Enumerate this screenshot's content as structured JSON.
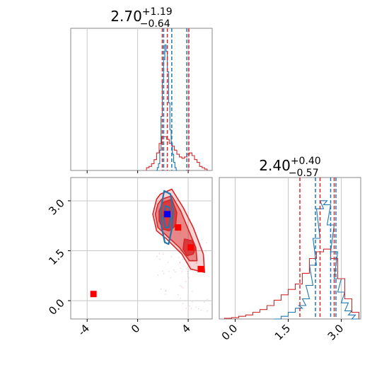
{
  "chart_data": [
    {
      "type": "histogram",
      "panel": "marginal-x",
      "title": {
        "value": "2.70",
        "plus": "+1.19",
        "minus": "−0.64"
      },
      "xlim": [
        -5.3,
        5.9
      ],
      "xticks": [
        "-4",
        "0",
        "4"
      ],
      "grid": true,
      "series": [
        {
          "color": "#1f77b4",
          "x": [
            1.5,
            1.6,
            1.7,
            1.8,
            1.9,
            2.0,
            2.1,
            2.2,
            2.3,
            2.4,
            2.5,
            2.6,
            2.7,
            2.8,
            2.9,
            3.0,
            3.1
          ],
          "values": [
            0.0,
            0.02,
            0.05,
            0.15,
            0.4,
            0.65,
            0.82,
            0.93,
            0.88,
            0.73,
            0.5,
            0.3,
            0.2,
            0.12,
            0.06,
            0.02,
            0.0
          ],
          "quantiles": [
            2.06,
            2.7,
            3.89
          ]
        },
        {
          "color": "#d62728",
          "x": [
            0.8,
            1.0,
            1.2,
            1.4,
            1.6,
            1.8,
            2.0,
            2.2,
            2.4,
            2.6,
            2.8,
            3.0,
            3.2,
            3.4,
            3.6,
            3.8,
            4.0,
            4.2,
            4.4,
            4.6,
            4.8,
            5.0,
            5.2,
            5.4
          ],
          "values": [
            0.02,
            0.03,
            0.05,
            0.08,
            0.13,
            0.2,
            0.25,
            0.25,
            0.23,
            0.2,
            0.18,
            0.15,
            0.12,
            0.1,
            0.09,
            0.1,
            0.12,
            0.13,
            0.11,
            0.08,
            0.06,
            0.03,
            0.02,
            0.01
          ],
          "quantiles": [
            1.95,
            2.35,
            4.05
          ]
        }
      ]
    },
    {
      "type": "histogram",
      "panel": "marginal-y",
      "title": {
        "value": "2.40",
        "plus": "+0.40",
        "minus": "−0.57"
      },
      "xlim": [
        -0.45,
        3.55
      ],
      "xticks": [
        "0.0",
        "1.5",
        "3.0"
      ],
      "grid": true,
      "series": [
        {
          "color": "#1f77b4",
          "x": [
            1.2,
            1.4,
            1.6,
            1.8,
            1.9,
            2.0,
            2.1,
            2.2,
            2.3,
            2.4,
            2.5,
            2.6,
            2.7,
            2.8,
            2.9,
            3.0,
            3.1,
            3.2,
            3.3,
            3.4
          ],
          "values": [
            0.0,
            0.02,
            0.05,
            0.08,
            0.1,
            0.15,
            0.25,
            0.4,
            0.6,
            0.82,
            0.88,
            0.85,
            0.7,
            0.5,
            0.3,
            0.2,
            0.12,
            0.06,
            0.03,
            0.0
          ],
          "quantiles": [
            2.27,
            2.7,
            2.85
          ]
        },
        {
          "color": "#d62728",
          "x": [
            -0.2,
            0.0,
            0.2,
            0.4,
            0.6,
            0.8,
            1.0,
            1.2,
            1.4,
            1.6,
            1.8,
            2.0,
            2.2,
            2.4,
            2.6,
            2.8,
            3.0,
            3.2,
            3.4
          ],
          "values": [
            0.005,
            0.01,
            0.02,
            0.03,
            0.05,
            0.07,
            0.1,
            0.14,
            0.18,
            0.22,
            0.26,
            0.34,
            0.45,
            0.5,
            0.52,
            0.45,
            0.3,
            0.15,
            0.05
          ],
          "quantiles": [
            1.83,
            2.4,
            2.8
          ]
        }
      ]
    },
    {
      "type": "scatter",
      "panel": "joint",
      "xlim": [
        -5.3,
        5.9
      ],
      "ylim": [
        -0.55,
        3.7
      ],
      "xticks": [
        "-4",
        "0",
        "4"
      ],
      "yticks": [
        "0.0",
        "1.5",
        "3.0"
      ],
      "grid": true,
      "contours_red": [
        {
          "level": "outer",
          "points": [
            [
              1.8,
              3.2
            ],
            [
              2.7,
              3.35
            ],
            [
              3.6,
              2.8
            ],
            [
              4.4,
              2.2
            ],
            [
              5.2,
              1.4
            ],
            [
              5.3,
              0.85
            ],
            [
              4.2,
              0.95
            ],
            [
              3.5,
              1.4
            ],
            [
              2.3,
              1.85
            ],
            [
              1.5,
              2.1
            ],
            [
              1.2,
              2.6
            ],
            [
              1.5,
              3.05
            ]
          ]
        },
        {
          "level": "middle",
          "points": [
            [
              1.9,
              3.05
            ],
            [
              2.7,
              3.15
            ],
            [
              3.4,
              2.7
            ],
            [
              4.0,
              2.15
            ],
            [
              4.6,
              1.6
            ],
            [
              4.7,
              1.2
            ],
            [
              4.1,
              1.2
            ],
            [
              3.3,
              1.6
            ],
            [
              2.3,
              1.95
            ],
            [
              1.6,
              2.2
            ],
            [
              1.4,
              2.6
            ],
            [
              1.6,
              2.9
            ]
          ]
        },
        {
          "level": "inner",
          "points": [
            [
              2.0,
              2.95
            ],
            [
              2.7,
              3.05
            ],
            [
              3.1,
              2.65
            ],
            [
              3.0,
              2.25
            ],
            [
              2.5,
              2.1
            ],
            [
              2.0,
              2.15
            ],
            [
              1.7,
              2.4
            ],
            [
              1.7,
              2.7
            ]
          ]
        },
        {
          "level": "blob",
          "points": [
            [
              3.7,
              1.85
            ],
            [
              4.3,
              1.8
            ],
            [
              4.6,
              1.6
            ],
            [
              4.4,
              1.4
            ],
            [
              3.9,
              1.35
            ],
            [
              3.6,
              1.55
            ]
          ]
        }
      ],
      "contours_blue": [
        {
          "level": "outer",
          "points": [
            [
              2.1,
              3.3
            ],
            [
              2.6,
              3.2
            ],
            [
              2.8,
              2.7
            ],
            [
              2.7,
              2.15
            ],
            [
              2.45,
              1.7
            ],
            [
              2.15,
              1.75
            ],
            [
              1.9,
              2.2
            ],
            [
              1.85,
              2.8
            ]
          ]
        },
        {
          "level": "inner",
          "points": [
            [
              2.2,
              2.85
            ],
            [
              2.5,
              2.8
            ],
            [
              2.6,
              2.5
            ],
            [
              2.45,
              2.2
            ],
            [
              2.2,
              2.2
            ],
            [
              2.05,
              2.5
            ]
          ]
        }
      ],
      "markers_red": [
        [
          -3.5,
          0.2
        ],
        [
          2.3,
          2.6
        ],
        [
          3.2,
          2.2
        ],
        [
          4.2,
          1.6
        ],
        [
          5.0,
          0.95
        ]
      ],
      "markers_blue": [
        [
          2.35,
          2.6
        ]
      ]
    }
  ]
}
